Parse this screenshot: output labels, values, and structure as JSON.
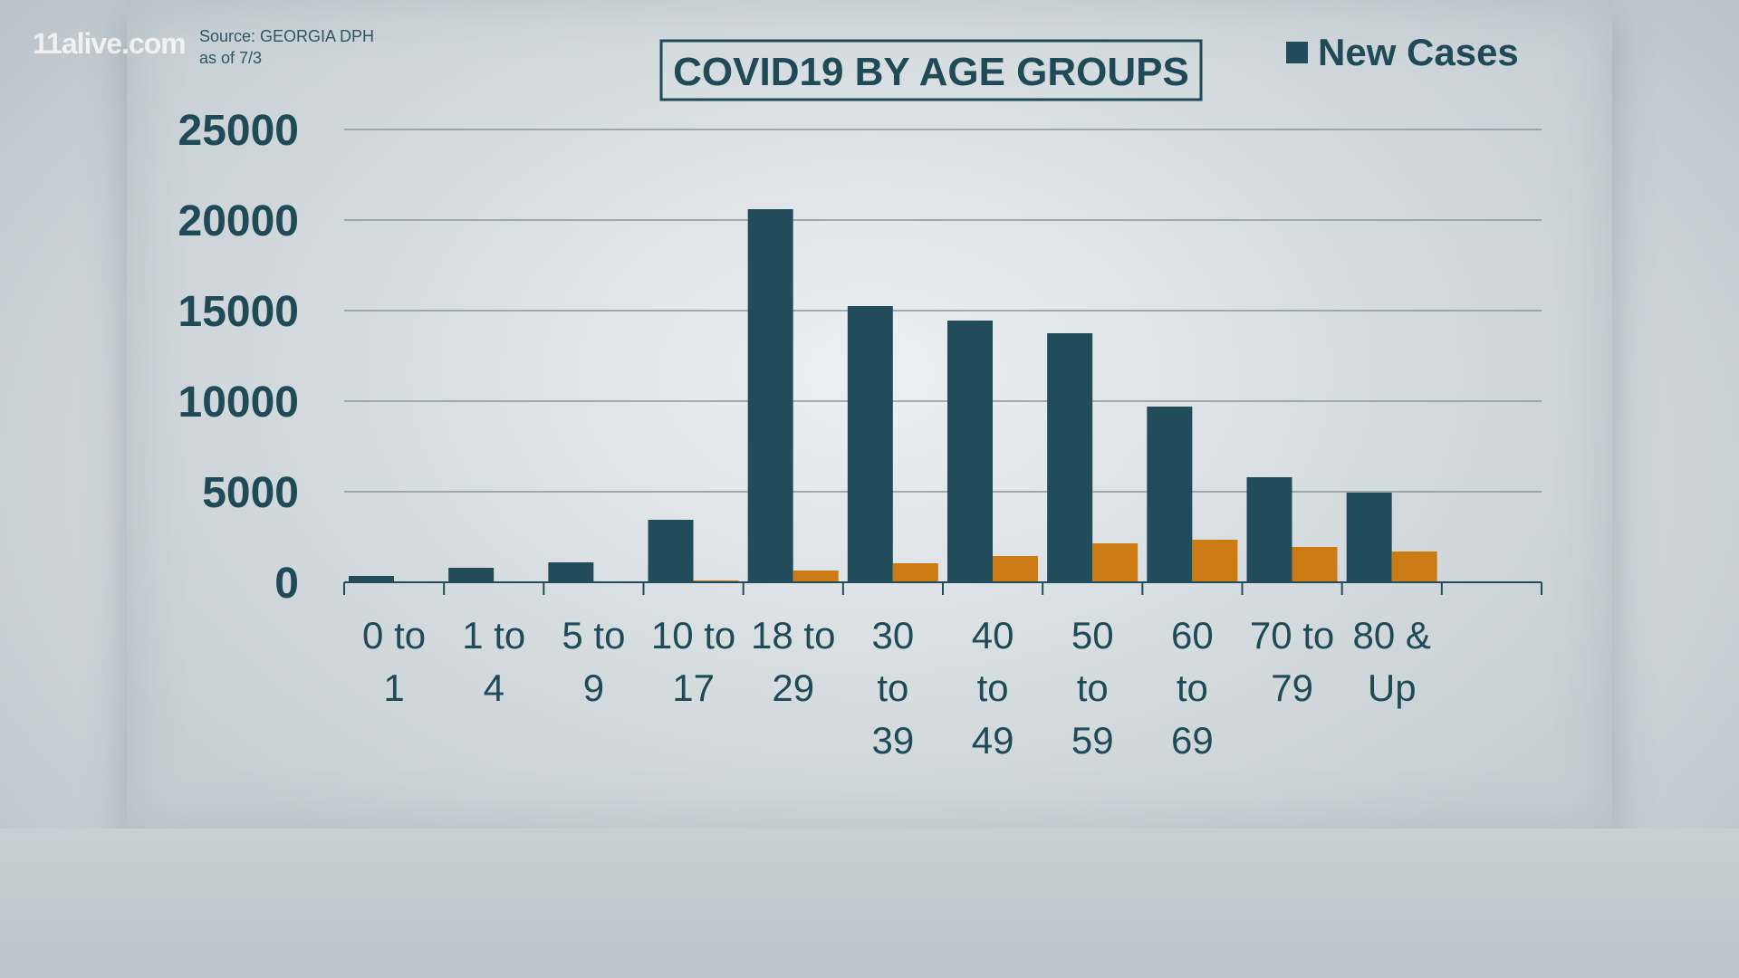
{
  "watermark": "11alive.com",
  "source": {
    "line1": "Source: GEORGIA DPH",
    "line2": "as of 7/3"
  },
  "colors": {
    "series1": "#224c59",
    "series2": "#cc7a14",
    "grid": "#8a979e",
    "text": "#1f4a56"
  },
  "chart_data": {
    "type": "bar",
    "title": "COVID19 BY AGE GROUPS",
    "xlabel": "",
    "ylabel": "",
    "ylim": [
      0,
      25000
    ],
    "yticks": [
      0,
      5000,
      10000,
      15000,
      20000,
      25000
    ],
    "grid": true,
    "legend_position": "top-right",
    "categories": [
      [
        "0 to",
        "1"
      ],
      [
        "1 to",
        "4"
      ],
      [
        "5 to",
        "9"
      ],
      [
        "10 to",
        "17"
      ],
      [
        "18 to",
        "29"
      ],
      [
        "30",
        "to",
        "39"
      ],
      [
        "40",
        "to",
        "49"
      ],
      [
        "50",
        "to",
        "59"
      ],
      [
        "60",
        "to",
        "69"
      ],
      [
        "70 to",
        "79"
      ],
      [
        "80 &",
        "Up"
      ]
    ],
    "series": [
      {
        "name": "New Cases",
        "legend": true,
        "values": [
          350,
          800,
          1100,
          3450,
          20600,
          15250,
          14450,
          13750,
          9700,
          5800,
          4950
        ]
      },
      {
        "name": "",
        "legend": false,
        "values": [
          30,
          40,
          40,
          100,
          650,
          1050,
          1450,
          2150,
          2350,
          1950,
          1700
        ]
      }
    ]
  }
}
